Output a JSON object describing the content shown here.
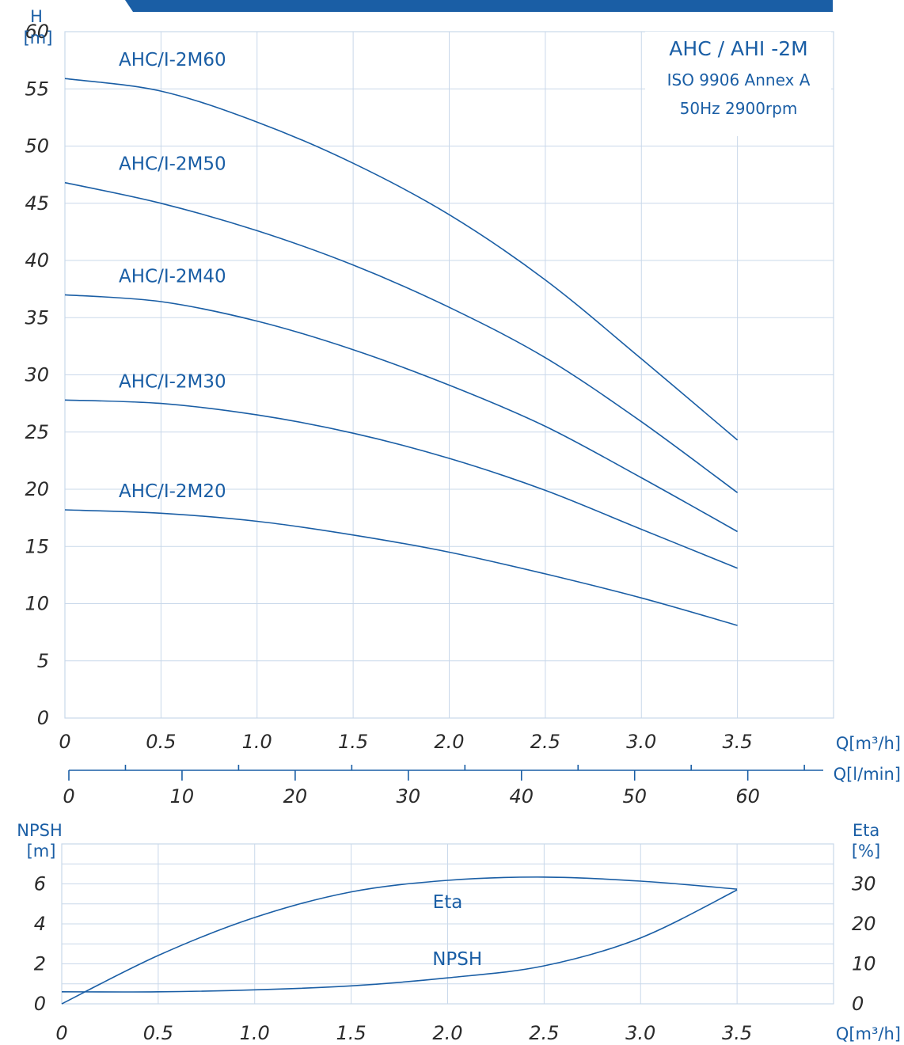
{
  "header": {
    "color": "#1a5ea5"
  },
  "info_box": {
    "line1": "AHC / AHI -2M",
    "line2": "ISO 9906 Annex A",
    "line3": "50Hz 2900rpm"
  },
  "colors": {
    "curve": "#1a5ea5",
    "grid": "#c9d8ea",
    "label": "#1a5ea5",
    "text": "#2b2b2b"
  },
  "chart_data": [
    {
      "type": "line",
      "title": "",
      "ylabel_line1": "H",
      "ylabel_line2": "[m]",
      "xlabel": "Q[m³/h]",
      "xlim": [
        0,
        4.0
      ],
      "ylim": [
        0,
        60
      ],
      "xticks": [
        "0",
        "0.5",
        "1.0",
        "1.5",
        "2.0",
        "2.5",
        "3.0",
        "3.5"
      ],
      "yticks": [
        "0",
        "5",
        "10",
        "15",
        "20",
        "25",
        "30",
        "35",
        "40",
        "45",
        "50",
        "55",
        "60"
      ],
      "grid": true,
      "x": [
        0,
        0.5,
        1.0,
        1.5,
        2.0,
        2.5,
        3.0,
        3.5
      ],
      "series": [
        {
          "name": "AHC/I-2M60",
          "values": [
            55.9,
            54.8,
            52.1,
            48.5,
            44.0,
            38.3,
            31.4,
            24.3
          ]
        },
        {
          "name": "AHC/I-2M50",
          "values": [
            46.8,
            45.0,
            42.6,
            39.6,
            35.9,
            31.5,
            25.9,
            19.7
          ]
        },
        {
          "name": "AHC/I-2M40",
          "values": [
            37.0,
            36.4,
            34.7,
            32.2,
            29.1,
            25.5,
            21.0,
            16.3
          ]
        },
        {
          "name": "AHC/I-2M30",
          "values": [
            27.8,
            27.5,
            26.5,
            24.9,
            22.7,
            19.9,
            16.5,
            13.1
          ]
        },
        {
          "name": "AHC/I-2M20",
          "values": [
            18.2,
            17.9,
            17.2,
            16.0,
            14.5,
            12.6,
            10.5,
            8.1
          ]
        }
      ]
    },
    {
      "type": "line",
      "title": "",
      "xlabel": "Q[l/min]",
      "xlim": [
        0,
        66.67
      ],
      "xticks": [
        "0",
        "10",
        "20",
        "30",
        "40",
        "50",
        "60"
      ]
    },
    {
      "type": "line",
      "title": "",
      "ylabel_left_line1": "NPSH",
      "ylabel_left_line2": "[m]",
      "ylabel_right_line1": "Eta",
      "ylabel_right_line2": "[%]",
      "xlabel": "Q[m³/h]",
      "xlim": [
        0,
        4.0
      ],
      "ylim_left": [
        0,
        8
      ],
      "ylim_right": [
        0,
        40
      ],
      "xticks": [
        "0",
        "0.5",
        "1.0",
        "1.5",
        "2.0",
        "2.5",
        "3.0",
        "3.5"
      ],
      "yticks_left": [
        "0",
        "2",
        "4",
        "6"
      ],
      "yticks_right": [
        "0",
        "10",
        "20",
        "30"
      ],
      "grid": true,
      "x": [
        0,
        0.5,
        1.0,
        1.5,
        2.0,
        2.5,
        3.0,
        3.5
      ],
      "series": [
        {
          "name": "Eta",
          "axis": "right",
          "values": [
            0,
            12.1,
            21.6,
            28.0,
            30.9,
            31.7,
            30.7,
            28.7
          ]
        },
        {
          "name": "NPSH",
          "axis": "left",
          "values": [
            0.6,
            0.6,
            0.7,
            0.9,
            1.3,
            1.9,
            3.3,
            5.7
          ]
        }
      ]
    }
  ]
}
